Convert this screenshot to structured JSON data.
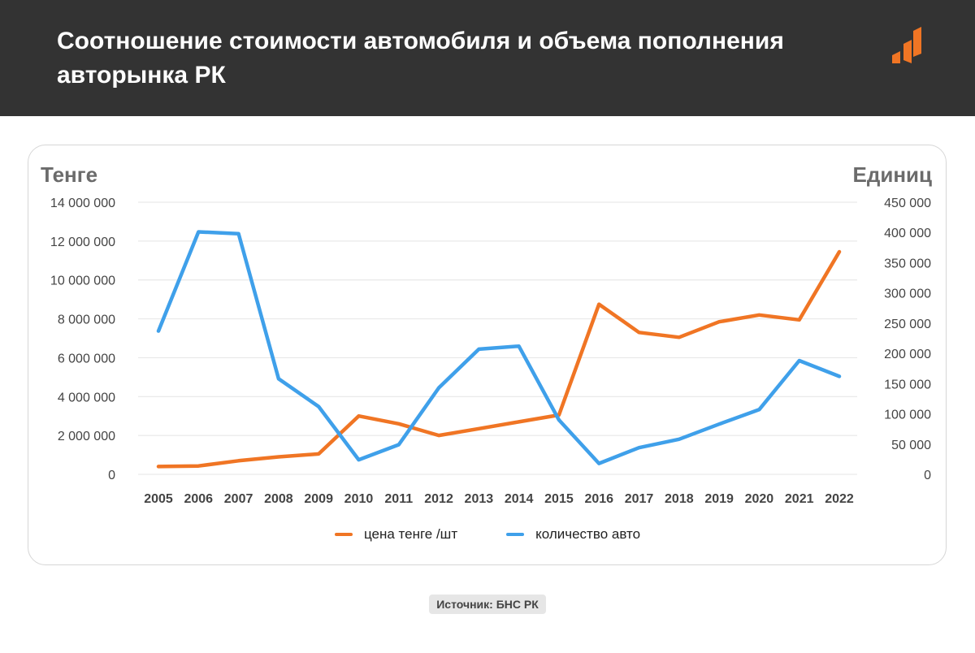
{
  "header": {
    "title": "Соотношение стоимости автомобиля и объема пополнения авторынка РК"
  },
  "chart_data": {
    "type": "line",
    "title": "",
    "y_left_label": "Тенге",
    "y_right_label": "Единиц",
    "x": [
      "2005",
      "2006",
      "2007",
      "2008",
      "2009",
      "2010",
      "2011",
      "2012",
      "2013",
      "2014",
      "2015",
      "2016",
      "2017",
      "2018",
      "2019",
      "2020",
      "2021",
      "2022"
    ],
    "ylim_left": [
      0,
      14000000
    ],
    "ylim_right": [
      0,
      450000
    ],
    "y_left_ticks": [
      "0",
      "2 000 000",
      "4 000 000",
      "6 000 000",
      "8 000 000",
      "10 000 000",
      "12 000 000",
      "14 000 000"
    ],
    "y_right_ticks": [
      "0",
      "50 000",
      "100 000",
      "150 000",
      "200 000",
      "250 000",
      "300 000",
      "350 000",
      "400 000",
      "450 000"
    ],
    "grid": true,
    "legend_position": "bottom-center",
    "series": [
      {
        "name": "цена тенге /шт",
        "axis": "left",
        "color": "#f07524",
        "values": [
          400000,
          430000,
          700000,
          900000,
          1050000,
          3000000,
          2600000,
          2000000,
          2350000,
          2700000,
          3050000,
          8750000,
          7300000,
          7050000,
          7850000,
          8200000,
          7950000,
          11450000
        ]
      },
      {
        "name": "количество авто",
        "axis": "right",
        "color": "#3fa0ea",
        "values": [
          237000,
          401000,
          398000,
          158000,
          112000,
          24000,
          49000,
          143000,
          207000,
          212000,
          90000,
          18000,
          44000,
          58000,
          83000,
          107000,
          188000,
          162000
        ]
      }
    ]
  },
  "source": {
    "label": "Источник: БНС РК"
  },
  "colors": {
    "header_bg": "#333333",
    "accent_orange": "#f07524",
    "accent_blue": "#3fa0ea",
    "grid": "#e4e4e4"
  }
}
